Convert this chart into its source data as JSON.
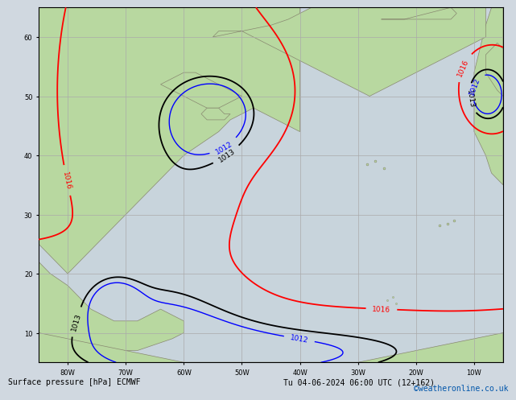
{
  "title_left": "Surface pressure [hPa] ECMWF",
  "title_right": "Tu 04-06-2024 06:00 UTC (12+162)",
  "credit": "©weatheronline.co.uk",
  "background_color": "#d0d8e0",
  "land_color": "#b8d8a0",
  "ocean_color": "#c8d4dc",
  "fig_width": 6.34,
  "fig_height": 4.9,
  "dpi": 100,
  "xlim": [
    -85,
    -5
  ],
  "ylim": [
    5,
    65
  ],
  "xticks": [
    -80,
    -70,
    -60,
    -50,
    -40,
    -30,
    -20,
    -10
  ],
  "yticks": [
    10,
    20,
    30,
    40,
    50,
    60
  ],
  "grid_color": "#aaaaaa",
  "grid_linewidth": 0.5,
  "bottom_fontsize": 7,
  "credit_fontsize": 7,
  "credit_color": "#0055aa"
}
